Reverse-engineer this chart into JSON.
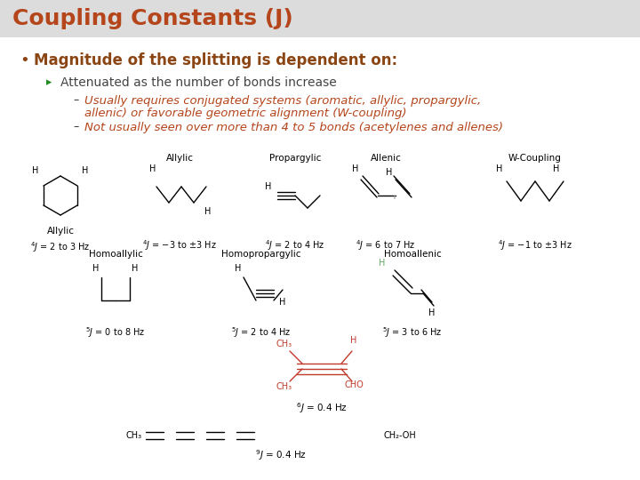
{
  "title": "Coupling Constants (J)",
  "title_color": "#B5451B",
  "title_fontsize": 18,
  "title_bar_color": "#DCDCDC",
  "bg_color": "#FFFFFF",
  "bullet1": "Magnitude of the splitting is dependent on:",
  "bullet1_color": "#8B4513",
  "bullet1_fontsize": 12,
  "sub_bullet1": "Attenuated as the number of bonds increase",
  "sub_bullet1_color": "#444444",
  "sub_bullet1_fontsize": 10,
  "sub_sub_bullet1_line1": "Usually requires conjugated systems (aromatic, allylic, propargylic,",
  "sub_sub_bullet1_line2": "allenic) or favorable geometric alignment (W-coupling)",
  "sub_sub_bullet2": "Not usually seen over more than 4 to 5 bonds (acetylenes and allenes)",
  "sub_sub_color": "#B5451B",
  "sub_sub_fontsize": 9.5,
  "struct_color": "#000000",
  "struct_red": "#C0392B"
}
